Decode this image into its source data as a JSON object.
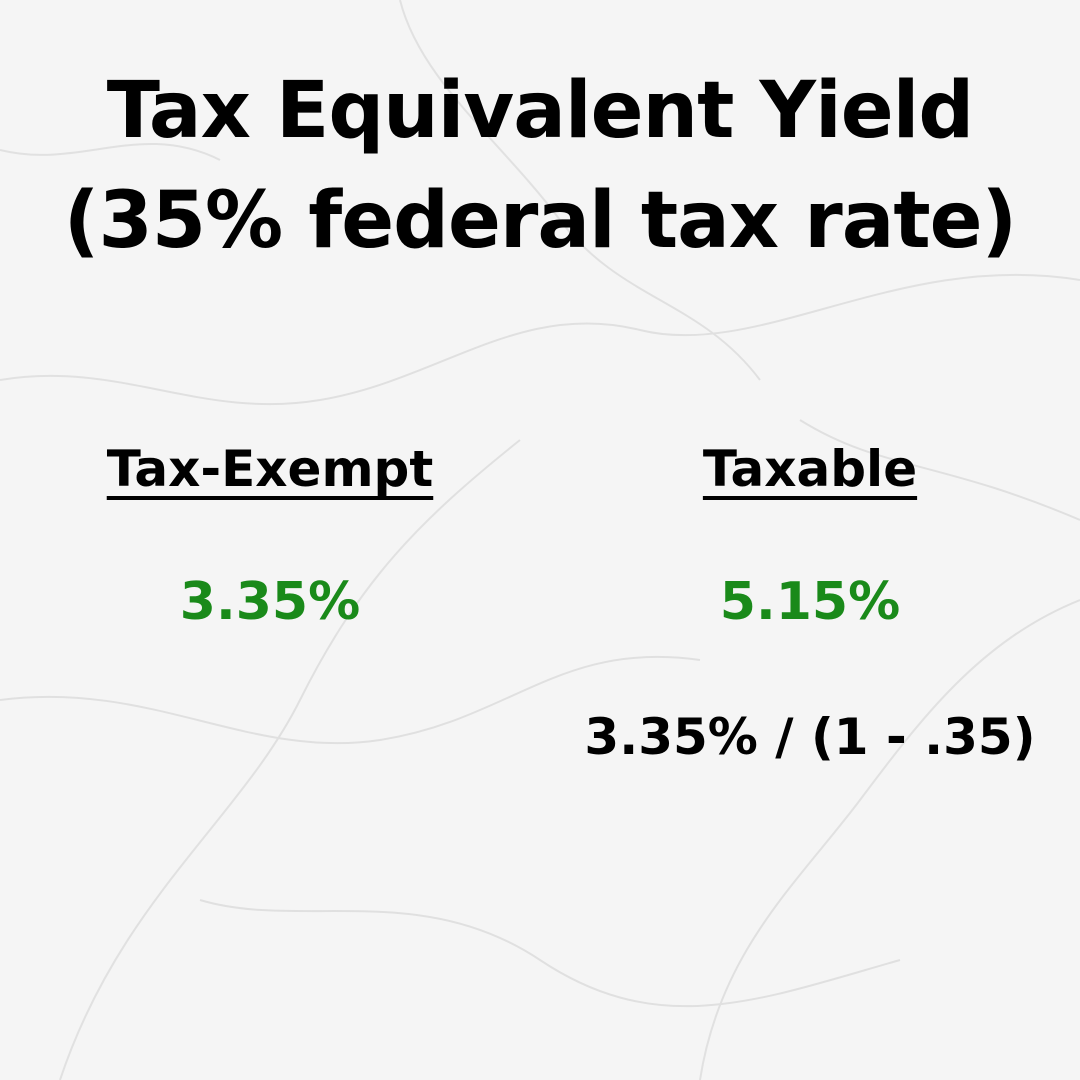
{
  "title": {
    "line1": "Tax Equivalent Yield",
    "line2": "(35% federal tax rate)"
  },
  "columns": [
    {
      "heading": "Tax-Exempt",
      "value": "3.35%"
    },
    {
      "heading": "Taxable",
      "value": "5.15%",
      "formula": "3.35% / (1 - .35)"
    }
  ]
}
